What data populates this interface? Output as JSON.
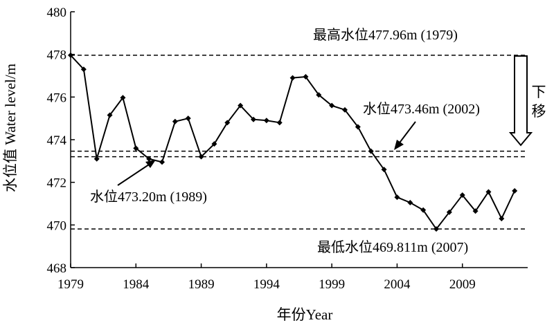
{
  "chart_data": {
    "type": "line",
    "xlabel": "年份Year",
    "ylabel": "水位值 Water level/m",
    "xlim": [
      1979,
      2014
    ],
    "ylim": [
      468,
      480
    ],
    "x_ticks": [
      1979,
      1984,
      1989,
      1994,
      1999,
      2004,
      2009
    ],
    "y_ticks": [
      468,
      470,
      472,
      474,
      476,
      478,
      480
    ],
    "grid": false,
    "series": [
      {
        "x": [
          1979,
          1980,
          1981,
          1982,
          1983,
          1984,
          1985,
          1986,
          1987,
          1988,
          1989,
          1990,
          1991,
          1992,
          1993,
          1994,
          1995,
          1996,
          1997,
          1998,
          1999,
          2000,
          2001,
          2002,
          2003,
          2004,
          2005,
          2006,
          2007,
          2008,
          2009,
          2010,
          2011,
          2012,
          2013
        ],
        "y": [
          477.96,
          477.3,
          473.1,
          475.15,
          475.97,
          473.6,
          473.1,
          472.95,
          474.85,
          475.0,
          473.2,
          473.8,
          474.8,
          475.6,
          474.95,
          474.9,
          474.8,
          476.9,
          476.95,
          476.1,
          475.6,
          475.4,
          474.6,
          473.46,
          472.6,
          471.3,
          471.05,
          470.7,
          469.811,
          470.6,
          471.4,
          470.65,
          471.55,
          470.3,
          471.6
        ]
      }
    ],
    "reference_lines": [
      {
        "y": 477.96,
        "label": "最高水位477.96m (1979)"
      },
      {
        "y": 473.46,
        "label": "水位473.46m (2002)"
      },
      {
        "y": 473.2,
        "label": "水位473.20m (1989)"
      },
      {
        "y": 469.811,
        "label": "最低水位469.811m (2007)"
      }
    ],
    "shift_label": [
      "下",
      "移"
    ]
  }
}
